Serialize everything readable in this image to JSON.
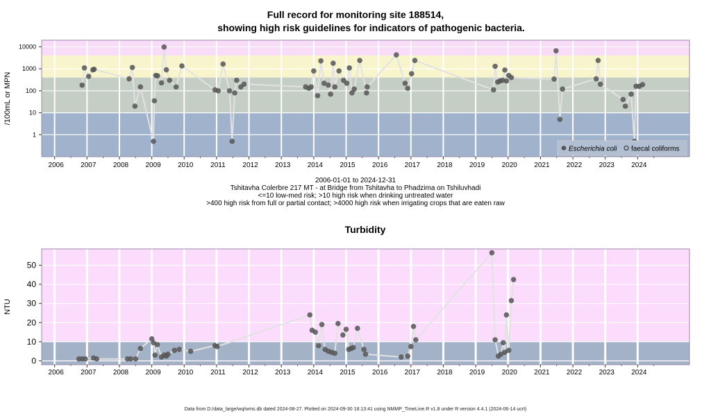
{
  "header": {
    "title_line1": "Full record for monitoring site 188514,",
    "title_line2": "showing high risk guidelines for indicators of pathogenic bacteria."
  },
  "top_chart_info": {
    "date_range": "2006-01-01 to 2024-12-31",
    "site": "Tshitavha Colerbre 217 MT - at Bridge from Tshitavha to Phadzima on Tshiluvhadi",
    "note1": "<=10 low-med risk; >10 high risk when drinking untreated water",
    "note2": ">400 high risk from full or partial contact; >4000 high risk when irrigating crops that are eaten raw"
  },
  "footer": {
    "text": "Data from D:/data_large/wq/wms.db dated 2024-08-27. Plotted on 2024-09-30 18:13:41 using NMMP_TimeLine.R v1.8 under R version 4.4.1 (2024-06-14 ucrt)"
  },
  "colors": {
    "band_pink": "#f8dcf8",
    "band_yellow": "#f8f4cc",
    "band_green": "#c4cec4",
    "band_blue": "#a0b2cc",
    "turb_pink": "#fcdcfc",
    "turb_blue": "#a4b2c8",
    "point": "#555555",
    "line": "#e2e2e2"
  },
  "chart_data": [
    {
      "type": "scatter",
      "title": "",
      "xlabel": "",
      "ylabel": "/100mL or MPN",
      "yscale": "log",
      "ylim": [
        0.1,
        20000
      ],
      "yticks": [
        1,
        10,
        100,
        1000,
        10000
      ],
      "ytick_labels": [
        "1",
        "10",
        "100",
        "1000",
        "10000"
      ],
      "xlim": [
        2005.6,
        2025.6
      ],
      "xticks": [
        2006,
        2007,
        2008,
        2009,
        2010,
        2011,
        2012,
        2013,
        2014,
        2015,
        2016,
        2017,
        2018,
        2019,
        2020,
        2021,
        2022,
        2023,
        2024
      ],
      "xtick_labels": [
        "2006",
        "2007",
        "2008",
        "2009",
        "2010",
        "2011",
        "2012",
        "2013",
        "2014",
        "2015",
        "2016",
        "2017",
        "2018",
        "2019",
        "2020",
        "2021",
        "2022",
        "2023",
        "2024"
      ],
      "grid": true,
      "legend_position": "bottom-right",
      "risk_bands": [
        {
          "from": 4000,
          "to": 20000,
          "color": "#f8dcf8"
        },
        {
          "from": 400,
          "to": 4000,
          "color": "#f8f4cc"
        },
        {
          "from": 10,
          "to": 400,
          "color": "#c4cec4"
        },
        {
          "from": 0.1,
          "to": 10,
          "color": "#a0b2cc"
        }
      ],
      "legend": [
        {
          "label": "Escherichia coli",
          "marker": "filled"
        },
        {
          "label": "faecal coliforms",
          "marker": "open"
        }
      ],
      "series": [
        {
          "name": "Escherichia coli",
          "x": [
            2006.85,
            2006.92,
            2007.05,
            2007.18,
            2007.22,
            2008.3,
            2008.4,
            2008.48,
            2008.65,
            2009.05,
            2009.08,
            2009.12,
            2009.18,
            2009.3,
            2009.38,
            2009.45,
            2009.55,
            2009.75,
            2009.93,
            2010.95,
            2011.05,
            2011.2,
            2011.4,
            2011.48,
            2011.56,
            2011.62,
            2011.75,
            2011.85,
            2013.75,
            2013.85,
            2013.92,
            2014.0,
            2014.12,
            2014.22,
            2014.32,
            2014.45,
            2014.52,
            2014.6,
            2014.65,
            2014.78,
            2014.92,
            2015.02,
            2015.1,
            2015.18,
            2015.25,
            2015.42,
            2015.63,
            2015.65,
            2016.55,
            2016.82,
            2016.9,
            2017.02,
            2017.12,
            2019.55,
            2019.6,
            2019.68,
            2019.75,
            2019.83,
            2019.9,
            2019.95,
            2020.02,
            2020.1,
            2021.42,
            2021.48,
            2021.6,
            2021.68,
            2022.72,
            2022.78,
            2022.85,
            2023.55,
            2023.62,
            2023.8,
            2023.9,
            2023.95,
            2024.05,
            2024.15
          ],
          "y": [
            180,
            1100,
            450,
            900,
            950,
            350,
            1150,
            20,
            150,
            0.5,
            35,
            500,
            480,
            230,
            9800,
            900,
            300,
            150,
            1350,
            110,
            100,
            1650,
            100,
            0.5,
            80,
            300,
            150,
            200,
            150,
            130,
            150,
            800,
            60,
            2300,
            220,
            180,
            70,
            1800,
            150,
            800,
            300,
            220,
            1100,
            80,
            120,
            2400,
            80,
            150,
            4300,
            220,
            130,
            600,
            2400,
            110,
            1300,
            250,
            280,
            300,
            880,
            280,
            500,
            400,
            340,
            6600,
            5,
            120,
            350,
            2400,
            200,
            40,
            20,
            70,
            0.5,
            160,
            160,
            190
          ]
        },
        {
          "name": "faecal coliforms",
          "x": [],
          "y": []
        }
      ]
    },
    {
      "type": "scatter",
      "title": "Turbidity",
      "xlabel": "",
      "ylabel": "NTU",
      "ylim": [
        -2,
        58.5
      ],
      "yticks": [
        0,
        10,
        20,
        30,
        40,
        50
      ],
      "ytick_labels": [
        "0",
        "10",
        "20",
        "30",
        "40",
        "50"
      ],
      "xlim": [
        2005.6,
        2025.6
      ],
      "xticks": [
        2006,
        2007,
        2008,
        2009,
        2010,
        2011,
        2012,
        2013,
        2014,
        2015,
        2016,
        2017,
        2018,
        2019,
        2020,
        2021,
        2022,
        2023,
        2024
      ],
      "xtick_labels": [
        "2006",
        "2007",
        "2008",
        "2009",
        "2010",
        "2011",
        "2012",
        "2013",
        "2014",
        "2015",
        "2016",
        "2017",
        "2018",
        "2019",
        "2020",
        "2021",
        "2022",
        "2023",
        "2024"
      ],
      "grid": true,
      "risk_bands": [
        {
          "from": 10,
          "to": 58.5,
          "color": "#fcdcfc"
        },
        {
          "from": -2,
          "to": 10,
          "color": "#a4b2c8"
        }
      ],
      "series": [
        {
          "name": "",
          "x": [
            2006.75,
            2006.85,
            2006.95,
            2007.2,
            2007.3,
            2008.25,
            2008.35,
            2008.5,
            2008.65,
            2009.0,
            2009.05,
            2009.1,
            2009.17,
            2009.3,
            2009.38,
            2009.45,
            2009.5,
            2009.7,
            2009.85,
            2010.2,
            2010.95,
            2011.02,
            2013.88,
            2013.95,
            2014.05,
            2014.15,
            2014.25,
            2014.35,
            2014.45,
            2014.55,
            2014.65,
            2014.75,
            2014.9,
            2015.0,
            2015.08,
            2015.15,
            2015.22,
            2015.35,
            2015.55,
            2015.6,
            2016.7,
            2016.9,
            2017.0,
            2017.08,
            2017.15,
            2019.5,
            2019.6,
            2019.7,
            2019.78,
            2019.85,
            2019.9,
            2019.95,
            2020.02,
            2020.1,
            2020.17
          ],
          "y": [
            1,
            1,
            1,
            1.5,
            1,
            1,
            1,
            1,
            6.5,
            11.5,
            9.5,
            3,
            8.5,
            2,
            3,
            2.5,
            3.5,
            5.5,
            6,
            5,
            8,
            7.5,
            24,
            16,
            15,
            8,
            19,
            6,
            5,
            4.5,
            4,
            19.5,
            13.5,
            16.5,
            6,
            6.5,
            7,
            17,
            6,
            3.5,
            2,
            2.5,
            7.5,
            18,
            11,
            56.5,
            11,
            2.5,
            3.5,
            9.5,
            4.5,
            24,
            5.5,
            31.5,
            42.5
          ]
        }
      ]
    }
  ]
}
